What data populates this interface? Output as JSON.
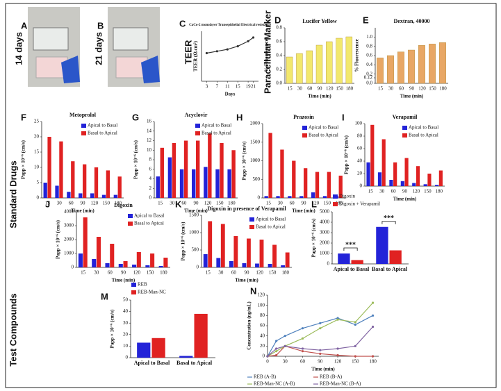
{
  "figure": {
    "panel_labels": [
      "A",
      "B",
      "C",
      "D",
      "E",
      "F",
      "G",
      "H",
      "I",
      "J",
      "K",
      "L",
      "M",
      "N"
    ],
    "photo_captions": [
      "14 days",
      "21 days"
    ],
    "row_labels": [
      "TEER",
      "Paracellular Marker",
      "Standard Drugs",
      "Test Compounds"
    ]
  },
  "chart_data": [
    {
      "type": "line",
      "title": "CaCo-2 monolayer Transepithelial Electrical resistance",
      "x_label": "Days",
      "y_label": "TEER (Ω.cm²)",
      "x": [
        3,
        7,
        11,
        15,
        19,
        21
      ],
      "values": [
        450,
        480,
        510,
        560,
        640,
        700
      ],
      "color": "#333333",
      "xlim": [
        1,
        23
      ],
      "xticks": [
        3,
        7,
        11,
        15,
        19,
        21
      ],
      "ylim": [
        0,
        800
      ]
    },
    {
      "type": "bar",
      "title": "Lucifer Yellow",
      "x_label": "Time (min)",
      "y_label": "% Fluorescence",
      "categories": [
        "15",
        "30",
        "60",
        "90",
        "120",
        "150",
        "180"
      ],
      "values": [
        0.38,
        0.43,
        0.47,
        0.55,
        0.6,
        0.65,
        0.67
      ],
      "color": "#f2e86d",
      "ylim": [
        0,
        0.8
      ],
      "yticks": [
        {
          "value": 0,
          "label": "0.0"
        },
        0.2,
        0.4,
        0.6,
        0.8
      ]
    },
    {
      "type": "bar",
      "title": "Dextran, 40000",
      "x_label": "Time (min)",
      "y_label": "% Fluorescence",
      "categories": [
        "15",
        "30",
        "60",
        "90",
        "120",
        "150",
        "180"
      ],
      "values": [
        0.55,
        0.6,
        0.68,
        0.72,
        0.82,
        0.85,
        0.88
      ],
      "color": "#e8a765",
      "ylim": [
        0,
        1.2
      ],
      "yticks": [
        {
          "value": 0,
          "label": "0.0"
        },
        0.2,
        0.4,
        0.6,
        0.8,
        {
          "value": 1,
          "label": "1.0"
        },
        0.12
      ]
    },
    {
      "type": "bar",
      "title": "Metoprolol",
      "x_label": "Time (min)",
      "y_label": "Papp × 10⁻⁶ (cm/s)",
      "legend": "upper right",
      "categories": [
        "15",
        "30",
        "60",
        "90",
        "120",
        "150",
        "180"
      ],
      "series": [
        {
          "name": "Apical to Basal",
          "color": "#2323d8",
          "values": [
            5,
            4,
            2,
            1.5,
            1.5,
            1,
            1
          ]
        },
        {
          "name": "Basal to Apical",
          "color": "#e02222",
          "values": [
            20,
            18.5,
            12,
            11,
            10,
            9,
            7
          ]
        }
      ],
      "ylim": [
        0,
        25
      ],
      "yticks": [
        0,
        5,
        10,
        15,
        20,
        25
      ]
    },
    {
      "type": "bar",
      "title": "Acyclovir",
      "x_label": "Time (min)",
      "y_label": "Papp × 10⁻⁶ (cm/s)",
      "legend": "upper right",
      "categories": [
        "15",
        "30",
        "60",
        "90",
        "120",
        "150",
        "180"
      ],
      "series": [
        {
          "name": "Apical to Basal",
          "color": "#2323d8",
          "values": [
            4.5,
            8.5,
            6,
            6,
            6.5,
            6,
            6
          ]
        },
        {
          "name": "Basal to Apical",
          "color": "#e02222",
          "values": [
            10.5,
            11.5,
            12,
            12,
            13.5,
            11.5,
            10
          ]
        }
      ],
      "ylim": [
        0,
        16
      ],
      "yticks": [
        0,
        2,
        4,
        6,
        8,
        10,
        12,
        14,
        16
      ]
    },
    {
      "type": "bar",
      "title": "Prazosin",
      "x_label": "Time (min)",
      "y_label": "Papp × 10⁻⁶ (cm/s)",
      "legend": "upper right",
      "categories": [
        "15",
        "30",
        "60",
        "90",
        "120",
        "150",
        "180"
      ],
      "series": [
        {
          "name": "Apical to Basal",
          "color": "#2323d8",
          "values": [
            50,
            50,
            50,
            50,
            150,
            50,
            50
          ]
        },
        {
          "name": "Basal to Apical",
          "color": "#e02222",
          "values": [
            1750,
            1300,
            1000,
            800,
            700,
            700,
            600
          ]
        }
      ],
      "ylim": [
        0,
        2000
      ],
      "yticks": [
        0,
        500,
        1000,
        1500,
        2000
      ]
    },
    {
      "type": "bar",
      "title": "Verapamil",
      "x_label": "Time (min)",
      "y_label": "Papp × 10⁻⁶ (cm/s)",
      "legend": "upper right",
      "categories": [
        "15",
        "30",
        "60",
        "90",
        "120",
        "150",
        "180"
      ],
      "series": [
        {
          "name": "Apical to Basal",
          "color": "#2323d8",
          "values": [
            38,
            22,
            10,
            8,
            5,
            3,
            2
          ]
        },
        {
          "name": "Basal to Apical",
          "color": "#e02222",
          "values": [
            98,
            75,
            38,
            45,
            32,
            20,
            25
          ]
        }
      ],
      "ylim": [
        0,
        100
      ],
      "yticks": [
        0,
        20,
        40,
        60,
        80,
        100
      ]
    },
    {
      "type": "bar",
      "title": "Digoxin",
      "x_label": "Time (min)",
      "y_label": "Papp × 10⁻⁶ (cm/s)",
      "legend": "upper right",
      "categories": [
        "15",
        "30",
        "60",
        "90",
        "120",
        "150",
        "180"
      ],
      "series": [
        {
          "name": "Apical to Basal",
          "color": "#2323d8",
          "values": [
            1000,
            600,
            300,
            250,
            200,
            150,
            100
          ]
        },
        {
          "name": "Basal to Apical",
          "color": "#e02222",
          "values": [
            3600,
            2200,
            1700,
            450,
            1100,
            1000,
            700
          ]
        }
      ],
      "ylim": [
        0,
        4000
      ],
      "yticks": [
        0,
        1000,
        2000,
        3000,
        4000
      ]
    },
    {
      "type": "bar",
      "title": "Digoxin in presence of Verapamil",
      "x_label": "Time (min)",
      "y_label": "Papp × 10⁻⁶ (cm/s)",
      "legend": "upper right",
      "categories": [
        "15",
        "30",
        "60",
        "90",
        "120",
        "150",
        "180"
      ],
      "series": [
        {
          "name": "Apical to Basal",
          "color": "#2323d8",
          "values": [
            380,
            270,
            180,
            120,
            110,
            100,
            60
          ]
        },
        {
          "name": "Basal to Apical",
          "color": "#e02222",
          "values": [
            1330,
            1250,
            900,
            830,
            800,
            650,
            430
          ]
        }
      ],
      "ylim": [
        0,
        1500
      ],
      "yticks": [
        0,
        500,
        1000,
        1500
      ]
    },
    {
      "type": "bar",
      "y_label": "Papp × 10⁻⁶ (cm/s)",
      "legend": "upper left",
      "categories": [
        "Apical to Basal",
        "Basal to Apical"
      ],
      "series": [
        {
          "name": "Digoxin",
          "color": "#2323d8",
          "values": [
            1000,
            3550
          ]
        },
        {
          "name": "Digoxin + Verapamil",
          "color": "#e02222",
          "values": [
            370,
            1300
          ]
        }
      ],
      "annotations": [
        "***",
        "***"
      ],
      "ylim": [
        0,
        5000
      ],
      "yticks": [
        0,
        1000,
        2000,
        3000,
        4000,
        5000
      ]
    },
    {
      "type": "bar",
      "y_label": "Papp × 10⁻⁶ (cm/s)",
      "legend": "upper left",
      "categories": [
        "Apical to Basal",
        "Basal to Apical"
      ],
      "series": [
        {
          "name": "REB",
          "color": "#2323d8",
          "values": [
            13,
            1.5
          ]
        },
        {
          "name": "REB-Man-NC",
          "color": "#e02222",
          "values": [
            17,
            38
          ]
        }
      ],
      "ylim": [
        0,
        50
      ],
      "yticks": [
        0,
        10,
        20,
        30,
        40,
        50
      ]
    },
    {
      "type": "line",
      "x_label": "Time (min)",
      "y_label": "Concentration (ng/mL)",
      "legend": "lower",
      "x": [
        0,
        15,
        30,
        60,
        90,
        120,
        150,
        180
      ],
      "series": [
        {
          "name": "REB (A-B)",
          "color": "#4f81bd",
          "values": [
            0,
            30,
            40,
            55,
            65,
            75,
            62,
            80
          ]
        },
        {
          "name": "REB (B-A)",
          "color": "#c0504d",
          "values": [
            0,
            2,
            20,
            10,
            5,
            2,
            0,
            0
          ]
        },
        {
          "name": "REB-Man-NC (A-B)",
          "color": "#9bbb59",
          "values": [
            0,
            10,
            20,
            35,
            55,
            72,
            67,
            105
          ]
        },
        {
          "name": "REB-Man-NC (B-A)",
          "color": "#8064a2",
          "values": [
            0,
            15,
            20,
            15,
            12,
            15,
            20,
            58
          ]
        }
      ],
      "xlim": [
        0,
        190
      ],
      "xticks": [
        0,
        30,
        60,
        90,
        120,
        150,
        180
      ],
      "ylim": [
        0,
        120
      ],
      "yticks": [
        0,
        20,
        40,
        60,
        80,
        100,
        120
      ]
    }
  ]
}
